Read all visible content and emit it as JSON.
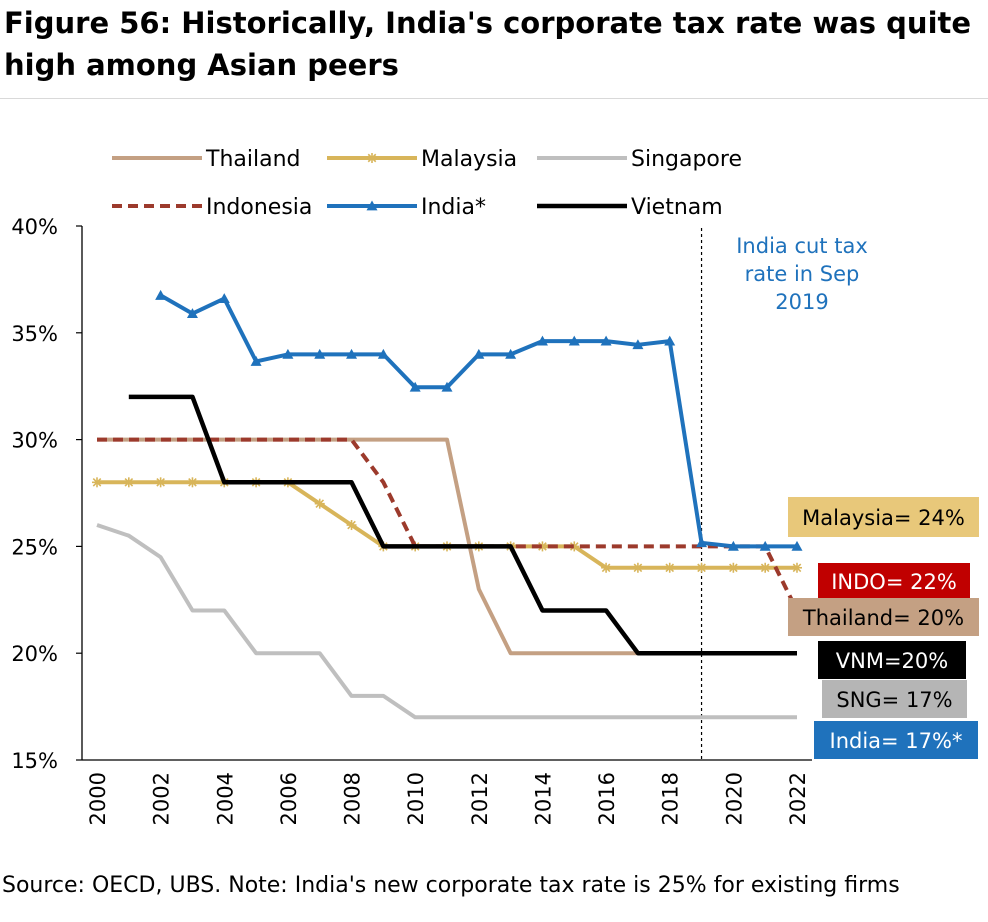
{
  "title": "Figure 56: Historically, India's corporate tax rate was quite high among Asian peers",
  "source": "Source: OECD, UBS. Note: India's new corporate tax rate is 25% for existing firms",
  "chart_data": {
    "type": "line",
    "title": "Figure 56: Historically, India's corporate tax rate was quite high among Asian peers",
    "xlabel": "",
    "ylabel": "",
    "xlim": [
      2000,
      2022
    ],
    "ylim": [
      15,
      40
    ],
    "x_ticks": [
      "2000",
      "2002",
      "2004",
      "2006",
      "2008",
      "2010",
      "2012",
      "2014",
      "2016",
      "2018",
      "2020",
      "2022"
    ],
    "y_ticks": [
      "15%",
      "20%",
      "25%",
      "30%",
      "35%",
      "40%"
    ],
    "grid": false,
    "legend_position": "top",
    "series": [
      {
        "name": "Thailand",
        "color": "#c4a083",
        "style": "solid",
        "marker": "none",
        "x": [
          2000,
          2001,
          2002,
          2003,
          2004,
          2005,
          2006,
          2007,
          2008,
          2009,
          2010,
          2011,
          2012,
          2013,
          2014,
          2015,
          2016,
          2017,
          2018,
          2019,
          2020,
          2021,
          2022
        ],
        "values": [
          30,
          30,
          30,
          30,
          30,
          30,
          30,
          30,
          30,
          30,
          30,
          30,
          23,
          20,
          20,
          20,
          20,
          20,
          20,
          20,
          20,
          20,
          20
        ]
      },
      {
        "name": "Malaysia",
        "color": "#d8b55a",
        "style": "solid",
        "marker": "asterisk",
        "x": [
          2000,
          2001,
          2002,
          2003,
          2004,
          2005,
          2006,
          2007,
          2008,
          2009,
          2010,
          2011,
          2012,
          2013,
          2014,
          2015,
          2016,
          2017,
          2018,
          2019,
          2020,
          2021,
          2022
        ],
        "values": [
          28,
          28,
          28,
          28,
          28,
          28,
          28,
          27,
          26,
          25,
          25,
          25,
          25,
          25,
          25,
          25,
          24,
          24,
          24,
          24,
          24,
          24,
          24
        ]
      },
      {
        "name": "Singapore",
        "color": "#bfbfbf",
        "style": "solid",
        "marker": "none",
        "x": [
          2000,
          2001,
          2002,
          2003,
          2004,
          2005,
          2006,
          2007,
          2008,
          2009,
          2010,
          2011,
          2012,
          2013,
          2014,
          2015,
          2016,
          2017,
          2018,
          2019,
          2020,
          2021,
          2022
        ],
        "values": [
          26,
          25.5,
          24.5,
          22,
          22,
          20,
          20,
          20,
          18,
          18,
          17,
          17,
          17,
          17,
          17,
          17,
          17,
          17,
          17,
          17,
          17,
          17,
          17
        ]
      },
      {
        "name": "Indonesia",
        "color": "#9c3a2c",
        "style": "dashed",
        "marker": "none",
        "x": [
          2000,
          2001,
          2002,
          2003,
          2004,
          2005,
          2006,
          2007,
          2008,
          2009,
          2010,
          2011,
          2012,
          2013,
          2014,
          2015,
          2016,
          2017,
          2018,
          2019,
          2020,
          2021,
          2022
        ],
        "values": [
          30,
          30,
          30,
          30,
          30,
          30,
          30,
          30,
          30,
          28,
          25,
          25,
          25,
          25,
          25,
          25,
          25,
          25,
          25,
          25,
          25,
          25,
          22
        ]
      },
      {
        "name": "India*",
        "color": "#1f72bc",
        "style": "solid",
        "marker": "triangle",
        "x": [
          2002,
          2003,
          2004,
          2005,
          2006,
          2007,
          2008,
          2009,
          2010,
          2011,
          2012,
          2013,
          2014,
          2015,
          2016,
          2017,
          2018,
          2019,
          2020,
          2021,
          2022
        ],
        "values": [
          36.75,
          35.9,
          36.6,
          33.66,
          33.99,
          33.99,
          33.99,
          33.99,
          32.45,
          32.45,
          33.99,
          33.99,
          34.61,
          34.61,
          34.61,
          34.44,
          34.61,
          25.17,
          25,
          25,
          25
        ]
      },
      {
        "name": "Vietnam",
        "color": "#000000",
        "style": "solid",
        "marker": "none",
        "x": [
          2001,
          2002,
          2003,
          2004,
          2005,
          2006,
          2007,
          2008,
          2009,
          2010,
          2011,
          2012,
          2013,
          2014,
          2015,
          2016,
          2017,
          2018,
          2019,
          2020,
          2021,
          2022
        ],
        "values": [
          32,
          32,
          32,
          28,
          28,
          28,
          28,
          28,
          25,
          25,
          25,
          25,
          25,
          22,
          22,
          22,
          20,
          20,
          20,
          20,
          20,
          20
        ]
      }
    ],
    "vline": {
      "x": 2019,
      "style": "dashed",
      "color": "#000000"
    },
    "annotations": [
      {
        "text": "India cut tax rate in Sep 2019",
        "color": "#1f72bc"
      }
    ],
    "end_labels": [
      {
        "text": "Malaysia= 24%",
        "bg": "#e8c87a",
        "fg": "#000000"
      },
      {
        "text": "INDO= 22%",
        "bg": "#c00000",
        "fg": "#ffffff"
      },
      {
        "text": "Thailand= 20%",
        "bg": "#c4a083",
        "fg": "#000000"
      },
      {
        "text": "VNM=20%",
        "bg": "#000000",
        "fg": "#ffffff"
      },
      {
        "text": "SNG= 17%",
        "bg": "#b5b5b5",
        "fg": "#000000"
      },
      {
        "text": "India= 17%*",
        "bg": "#1f72bc",
        "fg": "#ffffff"
      }
    ]
  }
}
